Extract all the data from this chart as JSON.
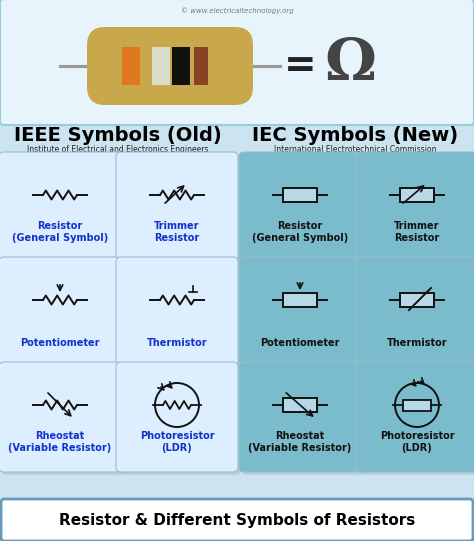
{
  "title": "Resistor & Different Symbols of Resistors",
  "header_ieee": "IEEE Symbols (Old)",
  "header_iec": "IEC Symbols (New)",
  "sub_ieee": "Institute of Electrical and Electronics Engineers",
  "sub_iec": "International Electrotechnical Commission",
  "watermark": "© www.electricaltechnology.org",
  "bg_color": "#cce4f0",
  "box_color_ieee": "#ddeeff",
  "box_color_iec": "#7bbccc",
  "box_shadow": "#aabbcc",
  "top_box_bg": "#e8f4fc",
  "title_bg": "#ffffff",
  "label_color_ieee": "#1133cc",
  "label_color_iec": "#111111",
  "symbol_color": "#111111",
  "cells": [
    {
      "label": "Resistor\n(General Symbol)",
      "type": "ieee_resistor",
      "col": 0,
      "row": 0
    },
    {
      "label": "Trimmer\nResistor",
      "type": "ieee_trimmer",
      "col": 1,
      "row": 0
    },
    {
      "label": "Resistor\n(General Symbol)",
      "type": "iec_resistor",
      "col": 2,
      "row": 0
    },
    {
      "label": "Trimmer\nResistor",
      "type": "iec_trimmer",
      "col": 3,
      "row": 0
    },
    {
      "label": "Potentiometer",
      "type": "ieee_potentiometer",
      "col": 0,
      "row": 1
    },
    {
      "label": "Thermistor",
      "type": "ieee_thermistor",
      "col": 1,
      "row": 1
    },
    {
      "label": "Potentiometer",
      "type": "iec_potentiometer",
      "col": 2,
      "row": 1
    },
    {
      "label": "Thermistor",
      "type": "iec_thermistor",
      "col": 3,
      "row": 1
    },
    {
      "label": "Rheostat\n(Variable Resistor)",
      "type": "ieee_rheostat",
      "col": 0,
      "row": 2
    },
    {
      "label": "Photoresistor\n(LDR)",
      "type": "ieee_photoresistor",
      "col": 1,
      "row": 2
    },
    {
      "label": "Rheostat\n(Variable Resistor)",
      "type": "iec_rheostat",
      "col": 2,
      "row": 2
    },
    {
      "label": "Photoresistor\n(LDR)",
      "type": "iec_photoresistor",
      "col": 3,
      "row": 2
    }
  ]
}
